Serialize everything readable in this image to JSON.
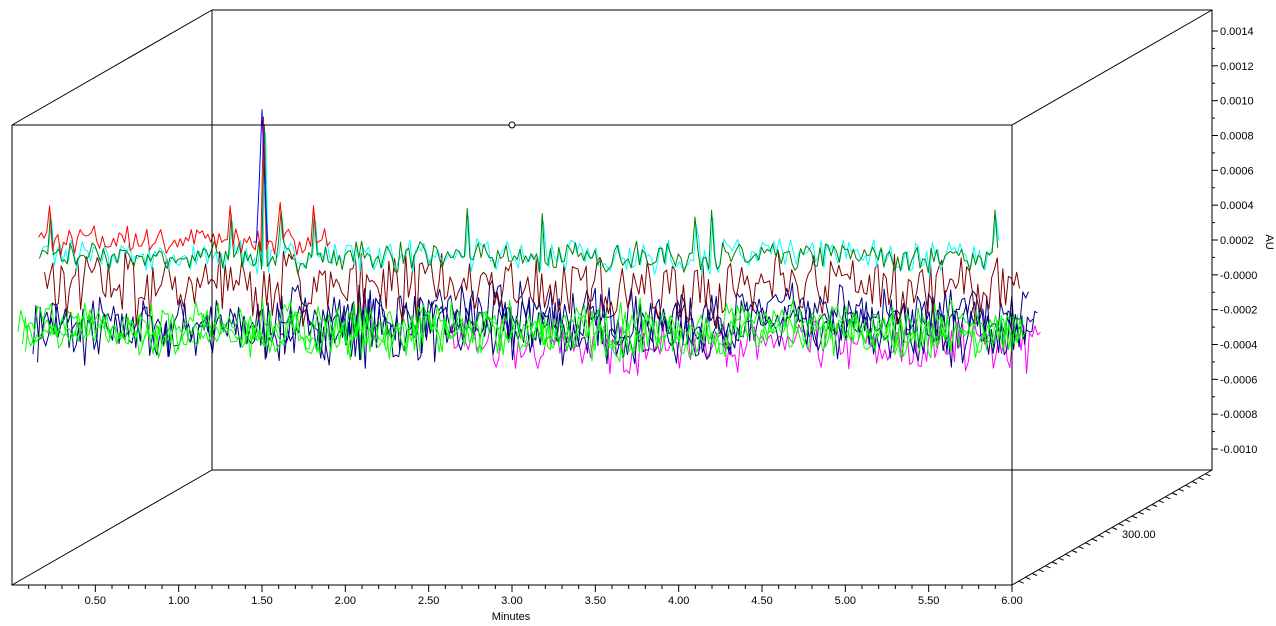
{
  "chart_data": {
    "type": "line",
    "style": "3d-waterfall",
    "title": "",
    "xlabel": "Minutes",
    "ylabel": "AU",
    "zlabel": "",
    "x_ticks": [
      "0.50",
      "1.00",
      "1.50",
      "2.00",
      "2.50",
      "3.00",
      "3.50",
      "4.00",
      "4.50",
      "5.00",
      "5.50",
      "6.00"
    ],
    "x_tick_values": [
      0.5,
      1.0,
      1.5,
      2.0,
      2.5,
      3.0,
      3.5,
      4.0,
      4.5,
      5.0,
      5.5,
      6.0
    ],
    "y_ticks": [
      "0.0014",
      "0.0012",
      "0.0010",
      "0.0008",
      "0.0006",
      "0.0004",
      "0.0002",
      "-0.0000",
      "-0.0002",
      "-0.0004",
      "-0.0006",
      "-0.0008",
      "-0.0010"
    ],
    "y_tick_values": [
      0.0014,
      0.0012,
      0.001,
      0.0008,
      0.0006,
      0.0004,
      0.0002,
      0,
      -0.0002,
      -0.0004,
      -0.0006,
      -0.0008,
      -0.001
    ],
    "z_ticks": [
      "300.00"
    ],
    "xlim": [
      0,
      6.0
    ],
    "ylim": [
      -0.001,
      0.0014
    ],
    "grid": false,
    "legend": "none",
    "series": [
      {
        "color": "#ff00ff",
        "baseline": -0.00055,
        "noise": 0.00018,
        "x_range": [
          2.45,
          6.0
        ],
        "depth": 0.95
      },
      {
        "color": "#000080",
        "baseline": -0.00045,
        "noise": 0.00022,
        "x_range": [
          0.0,
          6.0
        ],
        "depth": 0.85
      },
      {
        "color": "#000080",
        "baseline": -0.0004,
        "noise": 0.0002,
        "x_range": [
          0.0,
          6.0
        ],
        "depth": 0.7
      },
      {
        "color": "#000080",
        "baseline": -0.0003,
        "noise": 0.0002,
        "x_range": [
          1.5,
          6.0
        ],
        "depth": 0.55
      },
      {
        "color": "#00ff00",
        "baseline": -0.0004,
        "noise": 0.00015,
        "x_range": [
          0.0,
          6.0
        ],
        "depth": 0.45
      },
      {
        "color": "#00ff00",
        "baseline": -0.0004,
        "noise": 0.00015,
        "x_range": [
          0.0,
          6.0
        ],
        "depth": 0.35
      },
      {
        "color": "#800000",
        "baseline": -0.0001,
        "noise": 0.00025,
        "x_range": [
          0.15,
          6.0
        ],
        "depth": 0.25
      },
      {
        "color": "#00ff00",
        "baseline": -0.0003,
        "noise": 0.00015,
        "x_range": [
          0.0,
          6.0
        ],
        "depth": 0.2
      },
      {
        "color": "#00ffff",
        "baseline": 0.0001,
        "noise": 0.00012,
        "x_range": [
          0.15,
          5.9
        ],
        "depth": 0.12
      },
      {
        "color": "#008000",
        "baseline": 0.0001,
        "noise": 0.0001,
        "x_range": [
          0.15,
          5.9
        ],
        "depth": 0.08
      },
      {
        "color": "#ff0000",
        "baseline": 0.0002,
        "noise": 0.0001,
        "x_range": [
          0.15,
          1.9
        ],
        "depth": 0.05
      },
      {
        "color": "#0000ff",
        "baseline": 0.0002,
        "noise": 0.0001,
        "x_range": [
          1.45,
          1.55
        ],
        "depth": 0.0
      }
    ],
    "peaks": [
      {
        "x": 1.5,
        "y": 0.00096
      },
      {
        "x": 0.22,
        "y": 0.00045
      },
      {
        "x": 1.3,
        "y": 0.00045
      },
      {
        "x": 1.6,
        "y": 0.00047
      },
      {
        "x": 1.8,
        "y": 0.00045
      },
      {
        "x": 2.72,
        "y": 0.00048
      },
      {
        "x": 3.17,
        "y": 0.00045
      },
      {
        "x": 4.08,
        "y": 0.00043
      },
      {
        "x": 4.18,
        "y": 0.00047
      },
      {
        "x": 5.88,
        "y": 0.00047
      }
    ]
  }
}
